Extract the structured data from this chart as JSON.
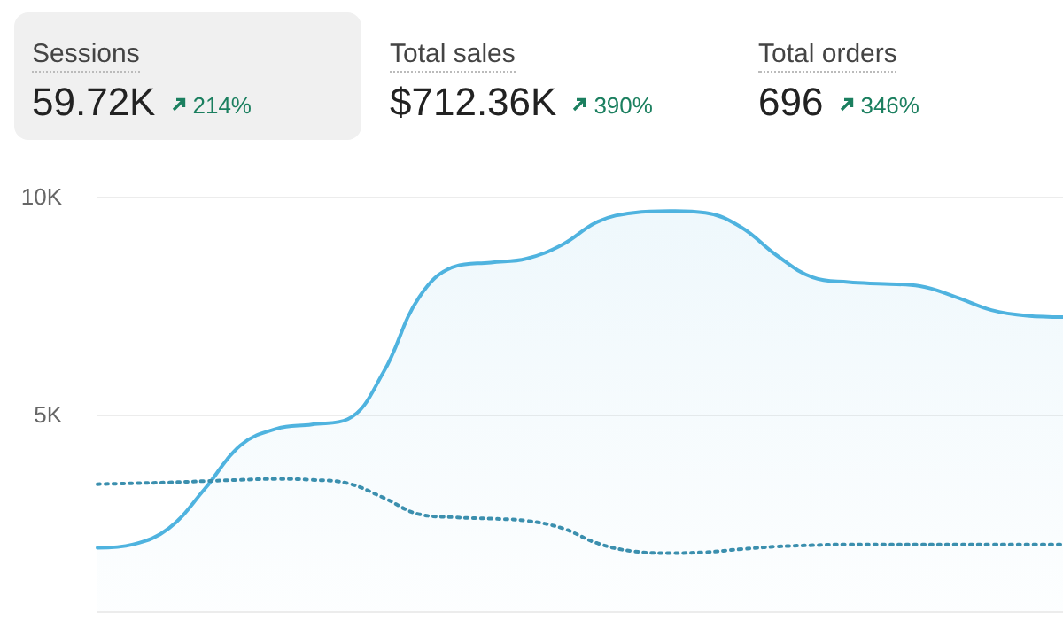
{
  "chart_data": [
    {
      "type": "other",
      "annotations": [
        "Sessions",
        "59.72K",
        "214%",
        "Total sales",
        "$712.36K",
        "390%",
        "Total orders",
        "696",
        "346%"
      ]
    },
    {
      "type": "line",
      "categories": [
        null,
        null,
        null,
        null,
        null,
        null,
        null,
        null,
        null,
        null,
        null,
        null,
        null,
        null,
        null,
        null,
        null,
        null,
        null,
        null,
        null,
        null,
        null,
        null,
        null,
        null,
        null,
        null
      ],
      "series": [
        {
          "type": "area",
          "color": "#4fb3df",
          "line_style": "solid",
          "values": [
            1950,
            2030,
            2400,
            3300,
            4300,
            4680,
            4780,
            4900,
            5980,
            7700,
            8400,
            8490,
            8580,
            8900,
            9430,
            9630,
            9670,
            9630,
            9300,
            8650,
            8150,
            8040,
            8000,
            7950,
            7700,
            7400,
            7270,
            7240
          ]
        },
        {
          "type": "line",
          "color": "#3b8fae",
          "line_style": "dotted",
          "values": [
            3410,
            3430,
            3450,
            3480,
            3510,
            3530,
            3510,
            3430,
            3100,
            2720,
            2650,
            2620,
            2570,
            2400,
            2050,
            1870,
            1830,
            1850,
            1920,
            1980,
            2010,
            2030,
            2030,
            2030,
            2030,
            2030,
            2030,
            2030
          ]
        }
      ],
      "ylim": [
        500,
        10000
      ],
      "yticks": [
        {
          "value": 5000,
          "label": "5K"
        },
        {
          "value": 10000,
          "label": "10K"
        }
      ],
      "grid": "y",
      "tick_labels": "y",
      "marker": "none"
    }
  ]
}
